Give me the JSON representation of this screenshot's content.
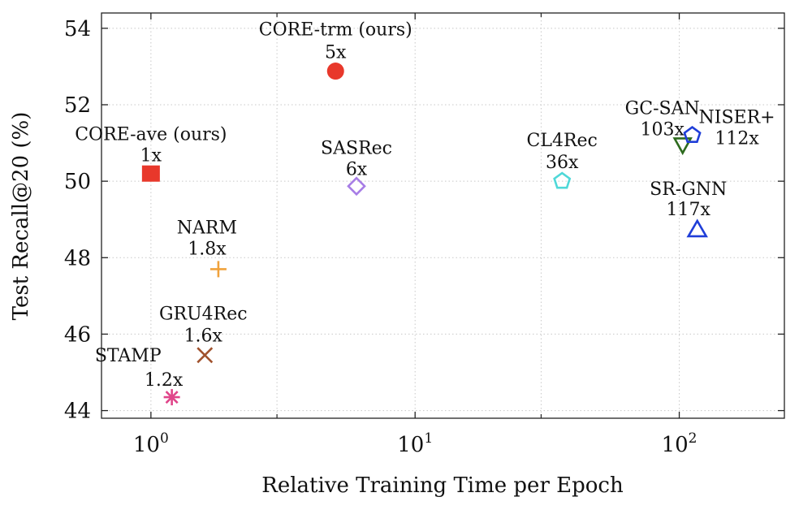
{
  "chart_data": {
    "type": "scatter",
    "title": "",
    "xlabel": "Relative Training Time per Epoch",
    "ylabel": "Test Recall@20 (%)",
    "xscale": "log",
    "xlim": [
      0.65,
      250
    ],
    "ylim": [
      43.8,
      54.4
    ],
    "grid": true,
    "x_ticks": [
      {
        "value": 1,
        "base": "10",
        "exp": "0"
      },
      {
        "value": 10,
        "base": "10",
        "exp": "1"
      },
      {
        "value": 100,
        "base": "10",
        "exp": "2"
      }
    ],
    "x_minor_ticks": [
      3,
      30
    ],
    "y_ticks": [
      {
        "value": 44,
        "label": "44"
      },
      {
        "value": 46,
        "label": "46"
      },
      {
        "value": 48,
        "label": "48"
      },
      {
        "value": 50,
        "label": "50"
      },
      {
        "value": 52,
        "label": "52"
      },
      {
        "value": 54,
        "label": "54"
      }
    ],
    "points": [
      {
        "id": "core-trm",
        "name": "CORE-trm  (ours)",
        "speed": "5x",
        "x": 5,
        "y": 52.88,
        "marker": "filled-circle",
        "color": "#e8382b"
      },
      {
        "id": "core-ave",
        "name": "CORE-ave (ours)",
        "speed": "1x",
        "x": 1,
        "y": 50.2,
        "marker": "filled-square",
        "color": "#e8382b"
      },
      {
        "id": "sasrec",
        "name": "SASRec",
        "speed": "6x",
        "x": 6,
        "y": 49.87,
        "marker": "diamond",
        "color": "#a77de6"
      },
      {
        "id": "cl4rec",
        "name": "CL4Rec",
        "speed": "36x",
        "x": 36,
        "y": 50.0,
        "marker": "pentagon",
        "color": "#4fd8d8"
      },
      {
        "id": "gc-san",
        "name": "GC-SAN",
        "speed": "103x",
        "x": 103,
        "y": 50.95,
        "marker": "down-triangle",
        "color": "#2e6b1f"
      },
      {
        "id": "niser",
        "name": "NISER+",
        "speed": "112x",
        "x": 112,
        "y": 51.2,
        "marker": "pentagon",
        "color": "#1f3ed8"
      },
      {
        "id": "sr-gnn",
        "name": "SR-GNN",
        "speed": "117x",
        "x": 117,
        "y": 48.75,
        "marker": "up-triangle",
        "color": "#1f3ed8"
      },
      {
        "id": "narm",
        "name": "NARM",
        "speed": "1.8x",
        "x": 1.8,
        "y": 47.7,
        "marker": "plus",
        "color": "#f0a23c"
      },
      {
        "id": "gru4rec",
        "name": "GRU4Rec",
        "speed": "1.6x",
        "x": 1.6,
        "y": 45.45,
        "marker": "cross",
        "color": "#a0522d"
      },
      {
        "id": "stamp",
        "name": "STAMP",
        "speed": "1.2x",
        "x": 1.2,
        "y": 44.35,
        "marker": "asterisk",
        "color": "#e0458a"
      }
    ]
  }
}
